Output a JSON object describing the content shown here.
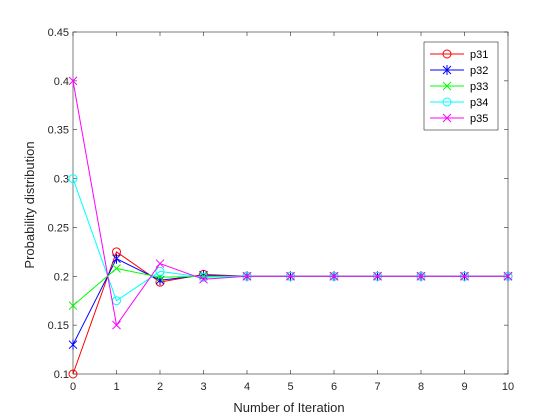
{
  "chart_data": {
    "type": "line",
    "title": "",
    "xlabel": "Number of Iteration",
    "ylabel": "Probability distribution",
    "xlim": [
      0,
      10
    ],
    "ylim": [
      0.1,
      0.45
    ],
    "x_ticks": [
      0,
      1,
      2,
      3,
      4,
      5,
      6,
      7,
      8,
      9,
      10
    ],
    "y_ticks": [
      0.1,
      0.15,
      0.2,
      0.25,
      0.3,
      0.35,
      0.4,
      0.45
    ],
    "y_tick_labels": [
      "0.1",
      "0.15",
      "0.2",
      "0.25",
      "0.3",
      "0.35",
      "0.4",
      "0.45"
    ],
    "grid": false,
    "legend_position": "top-right",
    "x": [
      0,
      1,
      2,
      3,
      4,
      5,
      6,
      7,
      8,
      9,
      10
    ],
    "series": [
      {
        "name": "p31",
        "color": "#ff0000",
        "marker": "circle",
        "values": [
          0.1,
          0.225,
          0.194,
          0.202,
          0.2,
          0.2,
          0.2,
          0.2,
          0.2,
          0.2,
          0.2
        ]
      },
      {
        "name": "p32",
        "color": "#0000ff",
        "marker": "asterisk",
        "values": [
          0.13,
          0.218,
          0.196,
          0.201,
          0.2,
          0.2,
          0.2,
          0.2,
          0.2,
          0.2,
          0.2
        ]
      },
      {
        "name": "p33",
        "color": "#00ff00",
        "marker": "x",
        "values": [
          0.17,
          0.208,
          0.199,
          0.2,
          0.2,
          0.2,
          0.2,
          0.2,
          0.2,
          0.2,
          0.2
        ]
      },
      {
        "name": "p34",
        "color": "#00ffff",
        "marker": "circle",
        "values": [
          0.3,
          0.175,
          0.205,
          0.199,
          0.2,
          0.2,
          0.2,
          0.2,
          0.2,
          0.2,
          0.2
        ]
      },
      {
        "name": "p35",
        "color": "#ff00ff",
        "marker": "x",
        "values": [
          0.4,
          0.15,
          0.213,
          0.197,
          0.2,
          0.2,
          0.2,
          0.2,
          0.2,
          0.2,
          0.2
        ]
      }
    ]
  }
}
